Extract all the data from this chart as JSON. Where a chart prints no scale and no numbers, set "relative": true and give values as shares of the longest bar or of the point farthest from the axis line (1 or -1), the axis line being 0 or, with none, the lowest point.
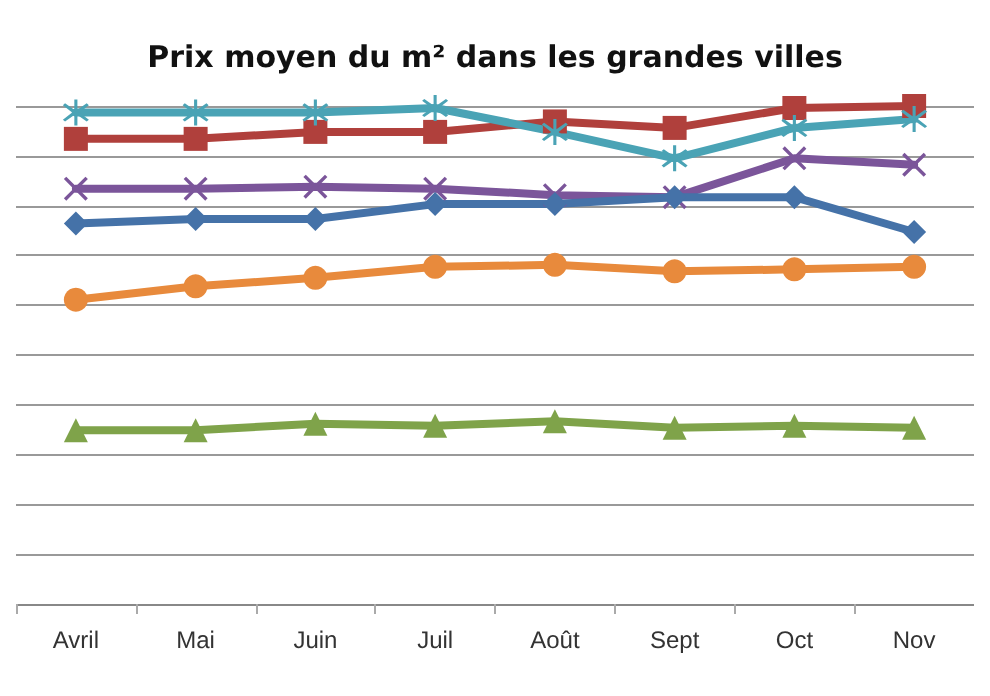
{
  "chart_data": {
    "type": "line",
    "title": "Prix moyen du m² dans les grandes villes",
    "categories": [
      "Avril",
      "Mai",
      "Juin",
      "Juil",
      "Août",
      "Sept",
      "Oct",
      "Nov"
    ],
    "relative": true,
    "grid": "y",
    "line_style": "solid",
    "series": [
      {
        "color": "#b0403c",
        "marker": "square",
        "values": [
          0.934,
          0.934,
          0.948,
          0.948,
          0.969,
          0.956,
          0.996,
          1
        ]
      },
      {
        "color": "#4aa3b5",
        "marker": "star",
        "values": [
          0.987,
          0.987,
          0.987,
          0.996,
          0.948,
          0.895,
          0.956,
          0.974
        ]
      },
      {
        "color": "#7b559a",
        "marker": "cross",
        "values": [
          0.834,
          0.834,
          0.838,
          0.834,
          0.821,
          0.817,
          0.895,
          0.882
        ]
      },
      {
        "color": "#4572a8",
        "marker": "diamond",
        "values": [
          0.764,
          0.773,
          0.773,
          0.803,
          0.803,
          0.817,
          0.817,
          0.747
        ]
      },
      {
        "color": "#e88a3c",
        "marker": "circle",
        "values": [
          0.611,
          0.638,
          0.655,
          0.677,
          0.681,
          0.668,
          0.672,
          0.677
        ]
      },
      {
        "color": "#7fa34a",
        "marker": "triangle",
        "values": [
          0.349,
          0.349,
          0.362,
          0.358,
          0.367,
          0.354,
          0.358,
          0.354
        ]
      }
    ]
  }
}
